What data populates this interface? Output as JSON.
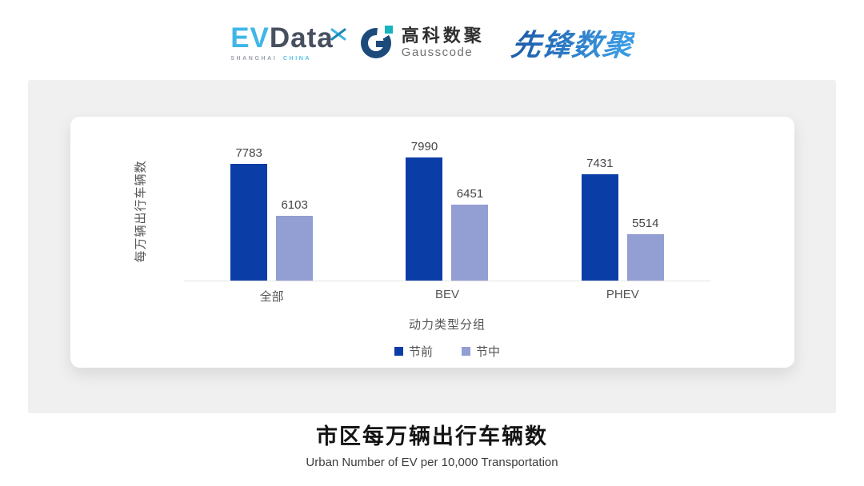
{
  "header": {
    "evdata": {
      "ev": "EV",
      "data": "Data",
      "tagline_left": "SHANGHAI",
      "tagline_right": "CHINA"
    },
    "gausscode": {
      "name_cn": "高科数聚",
      "name_en": "Gausscode"
    },
    "pioneer": {
      "name": "先锋数聚"
    }
  },
  "chart_data": {
    "type": "bar",
    "categories": [
      "全部",
      "BEV",
      "PHEV"
    ],
    "series": [
      {
        "name": "节前",
        "values": [
          7783,
          7990,
          7431
        ],
        "color": "#0B3DA6"
      },
      {
        "name": "节中",
        "values": [
          6103,
          6451,
          5514
        ],
        "color": "#939ED2"
      }
    ],
    "xlabel": "动力类型分组",
    "ylabel": "每万辆出行车辆数",
    "ylim": [
      4000,
      8400
    ],
    "grid": false,
    "legend_position": "bottom",
    "value_labels": true
  },
  "footer": {
    "title": "市区每万辆出行车辆数",
    "subtitle": "Urban Number of EV per 10,000 Transportation"
  }
}
